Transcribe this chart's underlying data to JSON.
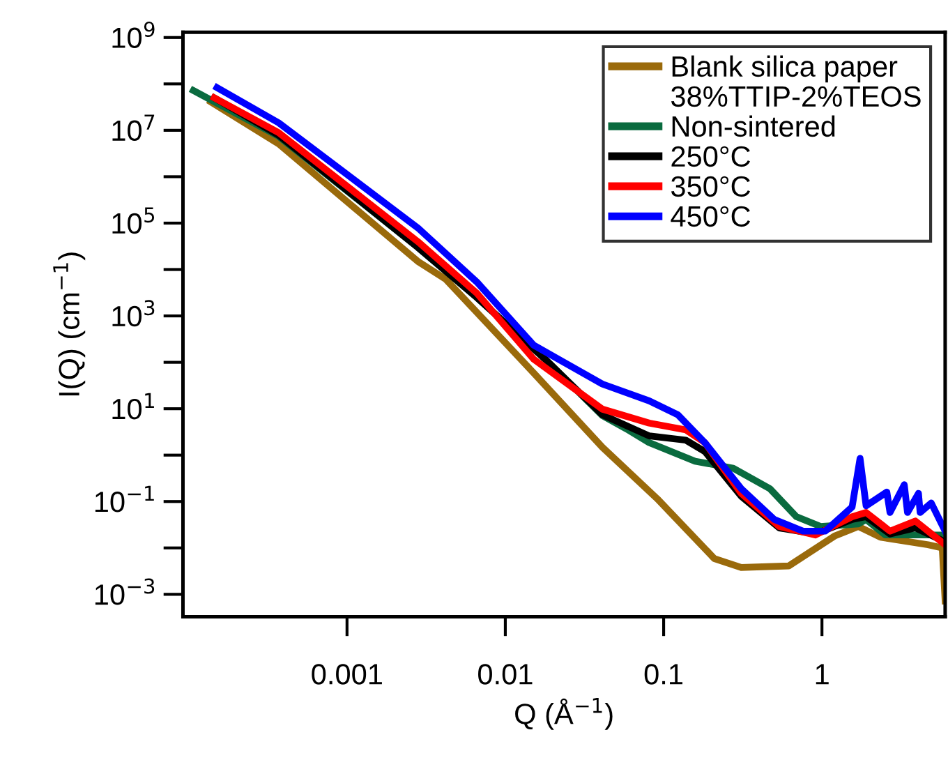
{
  "chart_data": {
    "type": "line",
    "xlabel": "Q (Å$^{−1}$)",
    "ylabel": "I(Q) (cm$^{−1}$)",
    "log": "xy",
    "grid": false,
    "legend": "top right",
    "marker": "none",
    "line_style": "solid",
    "xlim": [
      9.2e-05,
      6.0
    ],
    "xticks": [
      0.001,
      0.01,
      0.1,
      1
    ],
    "ylim": [
      0.00033,
      1300000000.0
    ],
    "yticks": [
      {
        "value": 0.001,
        "label": "10$^{−3}$"
      },
      {
        "value": 0.01,
        "label": null
      },
      {
        "value": 0.1,
        "label": "10$^{−1}$"
      },
      {
        "value": 1,
        "label": null
      },
      {
        "value": 10,
        "label": "10$^{1}$"
      },
      {
        "value": 100,
        "label": null
      },
      {
        "value": 1000,
        "label": "10$^{3}$"
      },
      {
        "value": 10000,
        "label": null
      },
      {
        "value": 100000,
        "label": "10$^{5}$"
      },
      {
        "value": 1000000,
        "label": null
      },
      {
        "value": 10000000,
        "label": "10$^{7}$"
      },
      {
        "value": 100000000,
        "label": null
      },
      {
        "value": 1000000000,
        "label": "10$^{9}$"
      }
    ],
    "annotations": [
      "38%TTIP-2%TEOS"
    ],
    "series": [
      {
        "name": "Blank silica paper",
        "color": "#9a6a0b",
        "x": [
          0.000138,
          0.00037,
          0.0028,
          0.0042,
          0.0151,
          0.041,
          0.091,
          0.209,
          0.309,
          0.617,
          1.2,
          1.7,
          2.34,
          4.68,
          5.75,
          6.0
        ],
        "values": [
          41000000,
          5100000,
          15000,
          6200,
          59,
          1.48,
          0.115,
          0.0059,
          0.0038,
          0.0041,
          0.018,
          0.029,
          0.017,
          0.0117,
          0.01,
          0.00072
        ]
      },
      {
        "name": "Non-sintered",
        "color": "#0a6b3f",
        "x": [
          0.000107,
          0.00037,
          0.0028,
          0.0066,
          0.0182,
          0.041,
          0.058,
          0.081,
          0.158,
          0.275,
          0.468,
          0.69,
          0.98,
          1.7,
          1.9,
          2.51,
          4.68,
          6.0
        ],
        "values": [
          72000000,
          7400000,
          30000,
          2500,
          110,
          7.1,
          3.7,
          1.86,
          0.74,
          0.52,
          0.19,
          0.047,
          0.029,
          0.033,
          0.041,
          0.019,
          0.019,
          0.019
        ]
      },
      {
        "name": "250°C",
        "color": "#000000",
        "x": [
          0.000145,
          0.00037,
          0.0028,
          0.0066,
          0.0182,
          0.041,
          0.081,
          0.138,
          0.182,
          0.309,
          0.537,
          0.91,
          1.55,
          1.9,
          2.69,
          3.89,
          6.0
        ],
        "values": [
          50000000,
          7800000,
          30000,
          2500,
          110,
          7.4,
          2.6,
          2.1,
          1.2,
          0.13,
          0.027,
          0.02,
          0.041,
          0.047,
          0.02,
          0.027,
          0.0135
        ]
      },
      {
        "name": "350°C",
        "color": "#ff0000",
        "x": [
          0.000145,
          0.00037,
          0.0028,
          0.0066,
          0.0151,
          0.041,
          0.081,
          0.138,
          0.182,
          0.309,
          0.537,
          0.91,
          1.55,
          1.9,
          2.69,
          3.89,
          6.0
        ],
        "values": [
          50000000,
          8900000,
          40000,
          3100,
          117,
          9.8,
          4.9,
          3.5,
          1.86,
          0.15,
          0.029,
          0.019,
          0.047,
          0.058,
          0.023,
          0.038,
          0.0117
        ]
      },
      {
        "name": "450°C",
        "color": "#0000ff",
        "x": [
          0.000151,
          0.00037,
          0.0028,
          0.0066,
          0.0151,
          0.041,
          0.081,
          0.123,
          0.182,
          0.309,
          0.5,
          0.76,
          1.05,
          1.55,
          1.74,
          1.9,
          2.57,
          2.69,
          3.31,
          3.47,
          4.07,
          4.17,
          4.9,
          6.0
        ],
        "values": [
          83000000,
          14500000,
          79000,
          5400,
          234,
          34,
          14.8,
          7.4,
          1.86,
          0.19,
          0.041,
          0.023,
          0.023,
          0.076,
          0.85,
          0.081,
          0.16,
          0.058,
          0.23,
          0.058,
          0.15,
          0.058,
          0.093,
          0.023
        ]
      }
    ]
  }
}
